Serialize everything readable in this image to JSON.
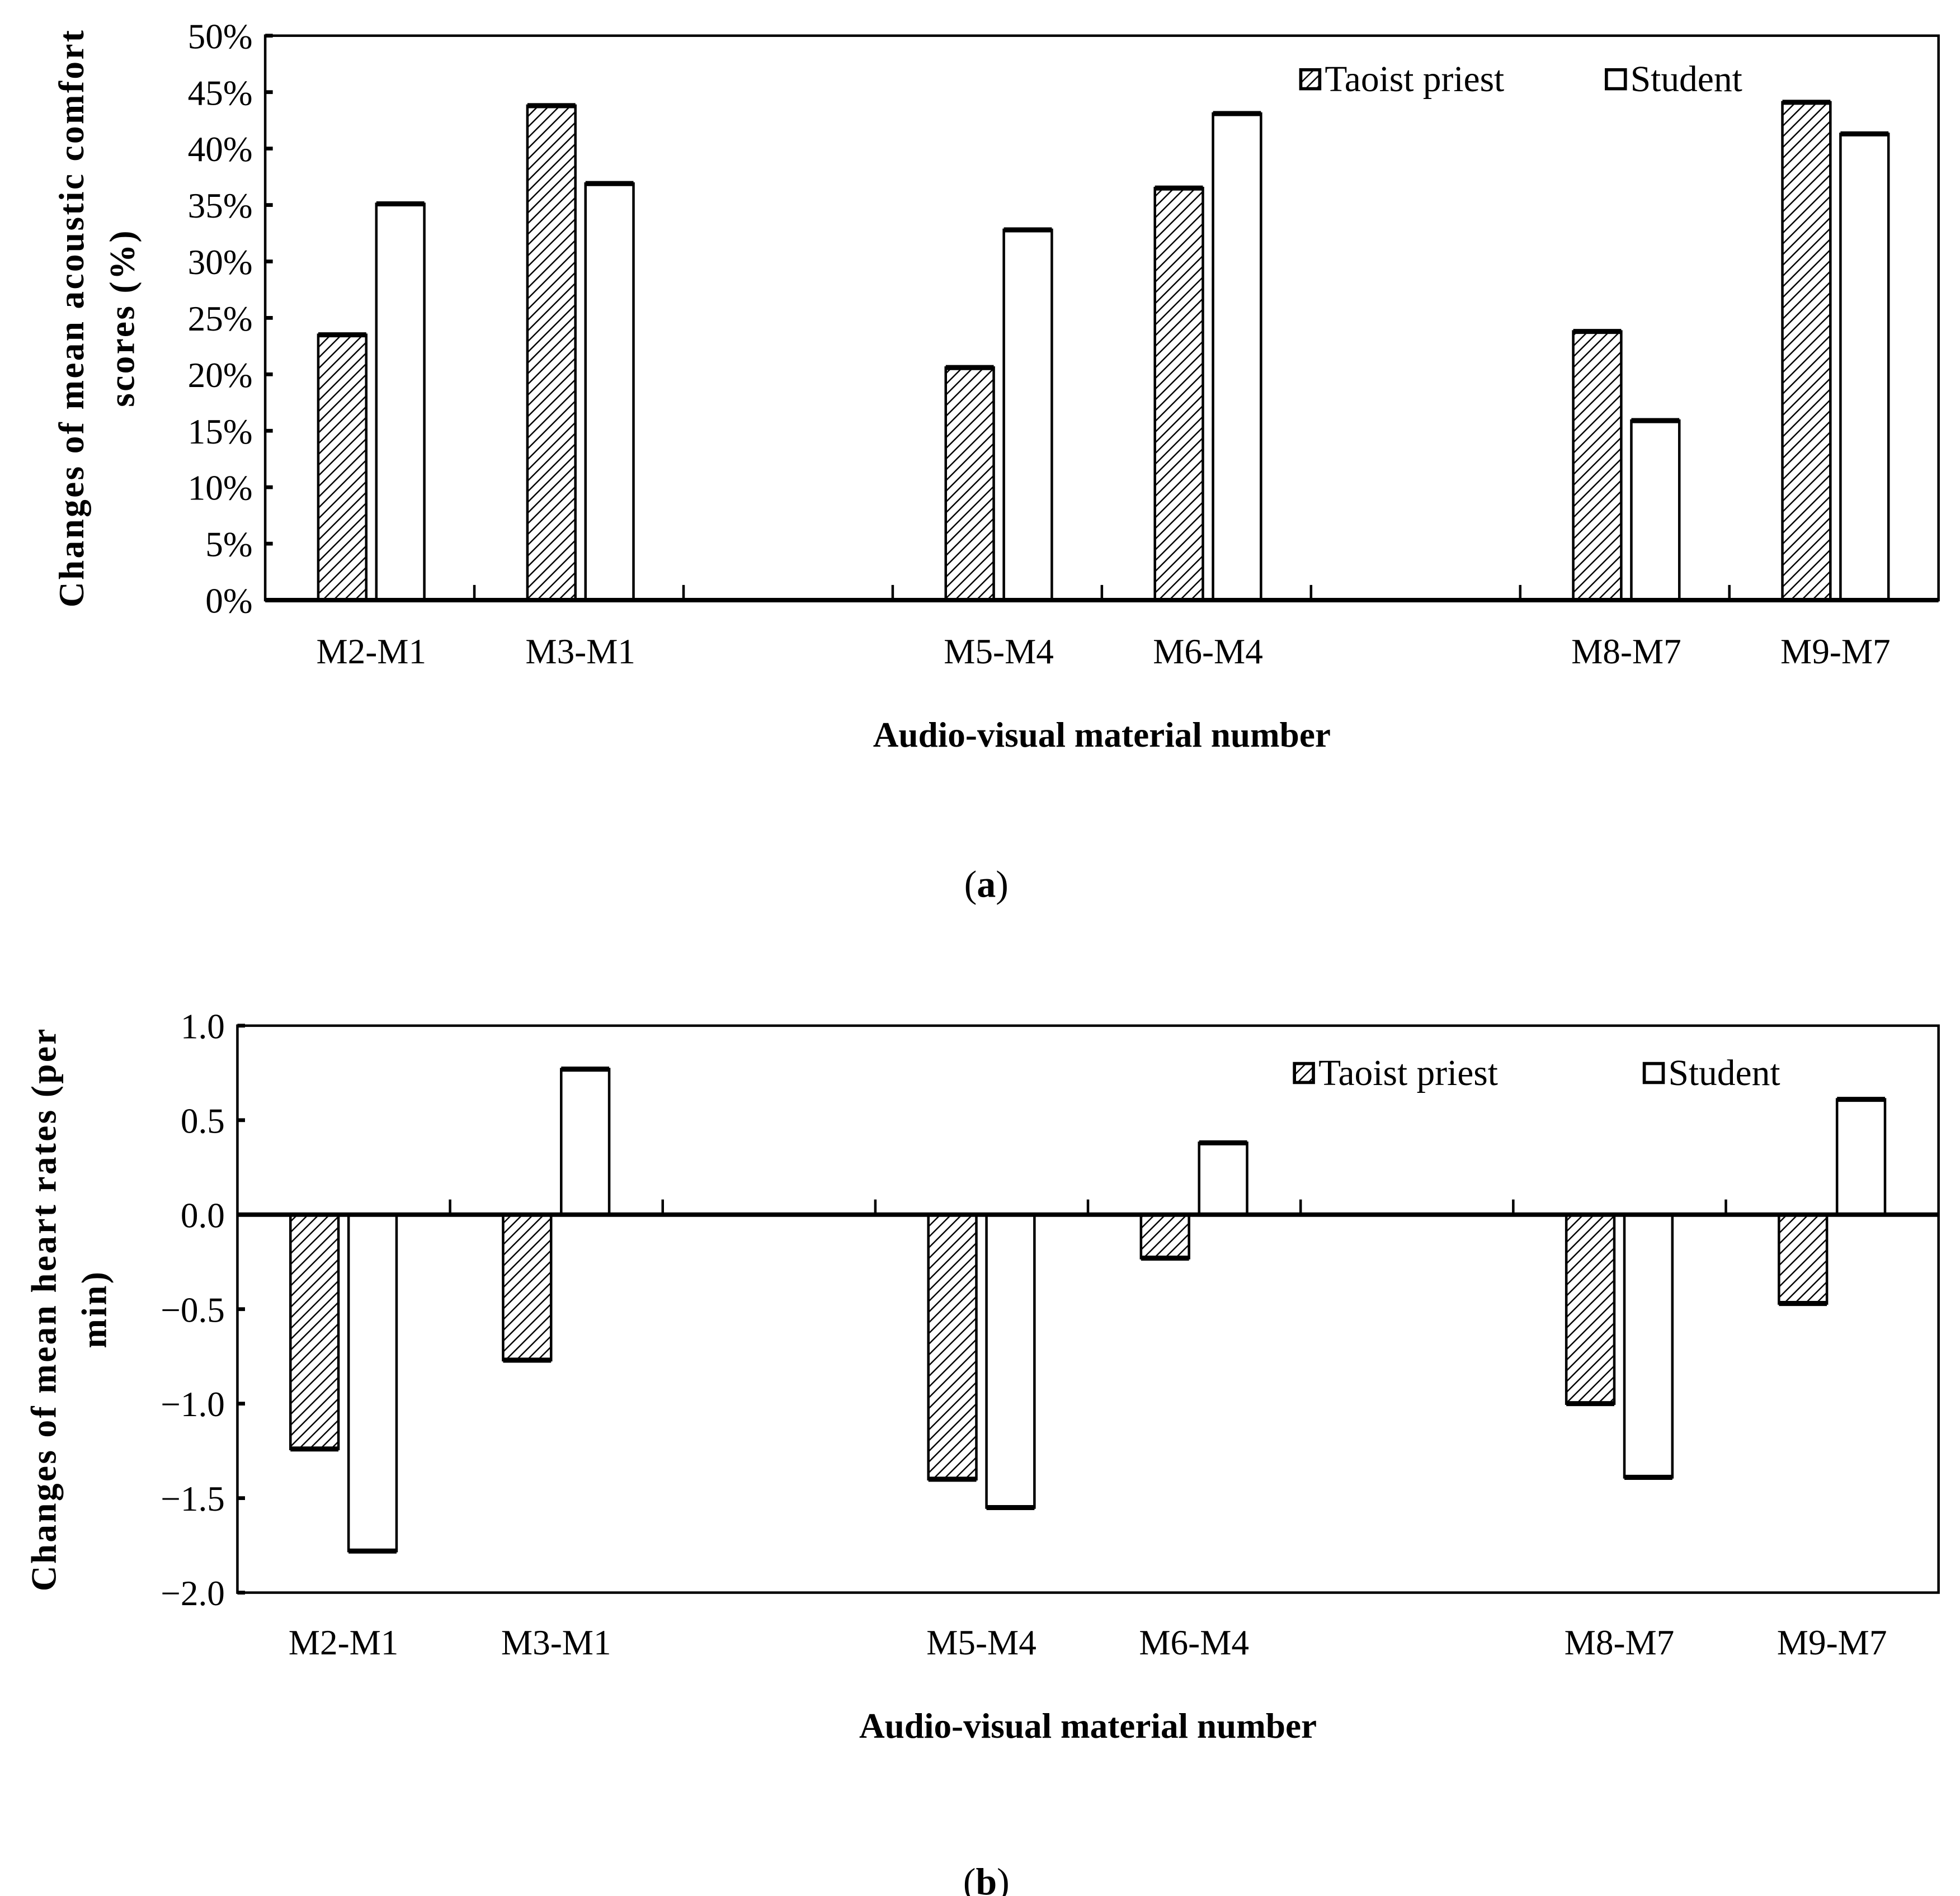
{
  "chart_data": [
    {
      "type": "bar",
      "caption": "(a)",
      "caption_bold": "a",
      "categories": [
        "M2-M1",
        "M3-M1",
        "",
        "M5-M4",
        "M6-M4",
        "",
        "M8-M7",
        "M9-M7"
      ],
      "series": [
        {
          "name": "Taoist priest",
          "fill": "hatched",
          "values": [
            23.5,
            43.8,
            null,
            20.6,
            36.5,
            null,
            23.8,
            44.1
          ]
        },
        {
          "name": "Student",
          "fill": "#ffffff",
          "values": [
            35.1,
            36.9,
            null,
            32.8,
            43.1,
            null,
            15.9,
            41.3
          ]
        }
      ],
      "xlabel": "Audio-visual material number",
      "ylabel": [
        "Changes of mean acoustic comfort",
        "scores (%)"
      ],
      "ylim": [
        0,
        50
      ],
      "yticks": [
        "0%",
        "5%",
        "10%",
        "15%",
        "20%",
        "25%",
        "30%",
        "35%",
        "40%",
        "45%",
        "50%"
      ],
      "grid": false,
      "legend": "top-right"
    },
    {
      "type": "bar",
      "caption": "(b)",
      "caption_bold": "b",
      "categories": [
        "M2-M1",
        "M3-M1",
        "",
        "M5-M4",
        "M6-M4",
        "",
        "M8-M7",
        "M9-M7"
      ],
      "series": [
        {
          "name": "Taoist priest",
          "fill": "hatched",
          "values": [
            -1.24,
            -0.77,
            null,
            -1.4,
            -0.23,
            null,
            -1.0,
            -0.47
          ]
        },
        {
          "name": "Student",
          "fill": "#ffffff",
          "values": [
            -1.78,
            0.77,
            null,
            -1.55,
            0.38,
            null,
            -1.39,
            0.61
          ]
        }
      ],
      "xlabel": "Audio-visual material number",
      "ylabel": [
        "Changes of mean heart rates (per",
        "min)"
      ],
      "ylim": [
        -2.0,
        1.0
      ],
      "yticks": [
        "−2.0",
        "−1.5",
        "−1.0",
        "−0.5",
        "0.0",
        "0.5",
        "1.0"
      ],
      "grid": false,
      "legend": "top-right"
    }
  ]
}
